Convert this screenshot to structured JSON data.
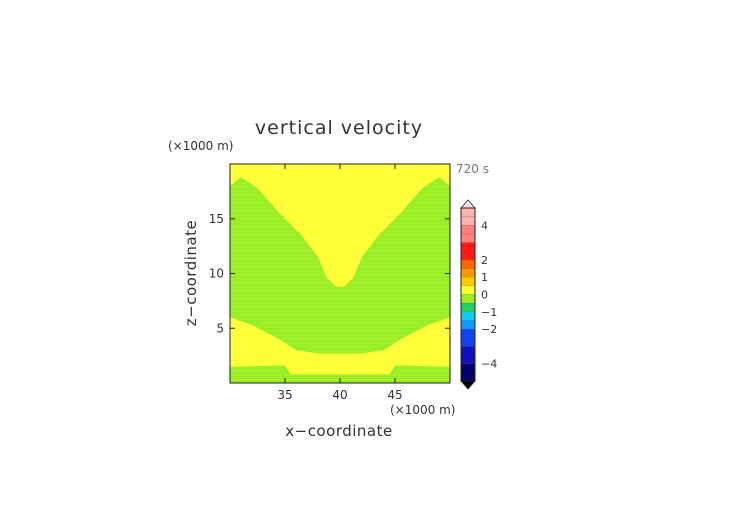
{
  "chart_data": {
    "type": "heatmap",
    "title": "vertical velocity",
    "time_label": "720 s",
    "xlabel": "x−coordinate",
    "ylabel": "z−coordinate",
    "x_unit": "(×1000 m)",
    "z_unit": "(×1000 m)",
    "xlim": [
      30,
      50
    ],
    "zlim": [
      0,
      20
    ],
    "x_ticks": [
      35,
      40,
      45
    ],
    "z_ticks": [
      5,
      10,
      15
    ],
    "grid": false,
    "legend_position": "right",
    "colorbar": {
      "labels": [
        {
          "text": "4",
          "value": 4
        },
        {
          "text": "2",
          "value": 2
        },
        {
          "text": "1",
          "value": 1
        },
        {
          "text": "0",
          "value": 0
        },
        {
          "text": "−1",
          "value": -1
        },
        {
          "text": "−2",
          "value": -2
        },
        {
          "text": "−4",
          "value": -4
        }
      ],
      "bands": [
        {
          "lo": 4,
          "hi": 5,
          "color": "#ffb0b0"
        },
        {
          "lo": 3,
          "hi": 4,
          "color": "#ff8080"
        },
        {
          "lo": 2,
          "hi": 3,
          "color": "#ff1a1a"
        },
        {
          "lo": 1.5,
          "hi": 2,
          "color": "#ff6600"
        },
        {
          "lo": 1,
          "hi": 1.5,
          "color": "#ff9900"
        },
        {
          "lo": 0.5,
          "hi": 1,
          "color": "#ffcc00"
        },
        {
          "lo": 0,
          "hi": 0.5,
          "color": "#ffff33"
        },
        {
          "lo": -0.5,
          "hi": 0,
          "color": "#99ee22"
        },
        {
          "lo": -1,
          "hi": -0.5,
          "color": "#22cc66"
        },
        {
          "lo": -1.5,
          "hi": -1,
          "color": "#11ccee"
        },
        {
          "lo": -2,
          "hi": -1.5,
          "color": "#1199ff"
        },
        {
          "lo": -3,
          "hi": -2,
          "color": "#1144ee"
        },
        {
          "lo": -4,
          "hi": -3,
          "color": "#1111bb"
        },
        {
          "lo": -5,
          "hi": -4,
          "color": "#000066"
        }
      ],
      "top_extend_color": "#ffe0e0",
      "bottom_extend_color": "#000000"
    },
    "regions": [
      {
        "name": "lower-green-strip",
        "color": "#99ee22",
        "value_range": [
          -0.5,
          0
        ],
        "points": [
          [
            30,
            0
          ],
          [
            50,
            0
          ],
          [
            50,
            1.5
          ],
          [
            45,
            1.6
          ],
          [
            44.5,
            0.8
          ],
          [
            35.5,
            0.8
          ],
          [
            35,
            1.6
          ],
          [
            30,
            1.5
          ]
        ]
      },
      {
        "name": "green-core",
        "color": "#99ee22",
        "value_range": [
          -0.5,
          0
        ],
        "points": [
          [
            30,
            6
          ],
          [
            32,
            5.3
          ],
          [
            34.5,
            4.0
          ],
          [
            36,
            3.0
          ],
          [
            38,
            2.7
          ],
          [
            40,
            2.7
          ],
          [
            42,
            2.7
          ],
          [
            44,
            3.0
          ],
          [
            45.5,
            4.0
          ],
          [
            48,
            5.3
          ],
          [
            50,
            6
          ],
          [
            50,
            18
          ],
          [
            49,
            18.8
          ],
          [
            47.5,
            17.8
          ],
          [
            45.5,
            15.5
          ],
          [
            43.5,
            13.5
          ],
          [
            42,
            11.5
          ],
          [
            41.2,
            9.6
          ],
          [
            40.4,
            8.8
          ],
          [
            39.6,
            8.8
          ],
          [
            38.8,
            9.6
          ],
          [
            38,
            11.5
          ],
          [
            36.5,
            13.5
          ],
          [
            34.5,
            15.5
          ],
          [
            32.5,
            17.8
          ],
          [
            31,
            18.8
          ],
          [
            30,
            18
          ]
        ]
      }
    ],
    "background_color": "#ffff33",
    "background_value_range": [
      0,
      0.5
    ]
  }
}
